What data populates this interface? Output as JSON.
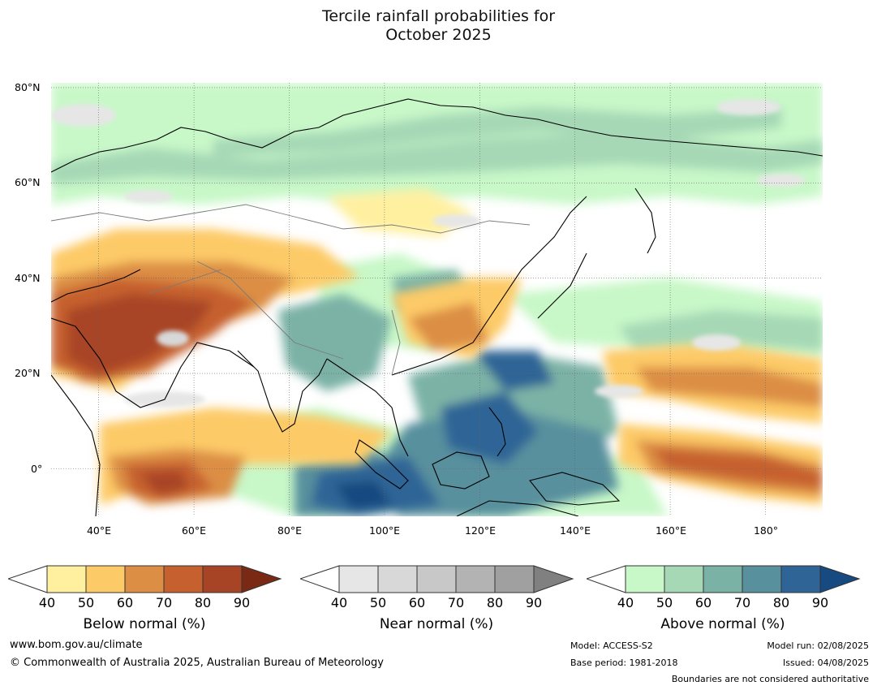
{
  "title_line1": "Tercile rainfall probabilities for",
  "title_line2": "October 2025",
  "map": {
    "lat_labels": [
      "80°N",
      "60°N",
      "40°N",
      "20°N",
      "0°"
    ],
    "lon_labels": [
      "40°E",
      "60°E",
      "80°E",
      "100°E",
      "120°E",
      "140°E",
      "160°E",
      "180°"
    ],
    "lat_range": [
      -10,
      81
    ],
    "lon_range": [
      30,
      192
    ]
  },
  "colorbars": [
    {
      "label": "Below normal (%)",
      "ticks": [
        "40",
        "50",
        "60",
        "70",
        "80",
        "90"
      ],
      "colors": [
        "#fff0a0",
        "#fdca68",
        "#dc8e44",
        "#c6612f",
        "#a84426",
        "#7a2a14"
      ]
    },
    {
      "label": "Near normal (%)",
      "ticks": [
        "40",
        "50",
        "60",
        "70",
        "80",
        "90"
      ],
      "colors": [
        "#e6e6e6",
        "#d8d8d8",
        "#c8c8c8",
        "#b3b3b3",
        "#a0a0a0",
        "#808080"
      ]
    },
    {
      "label": "Above normal (%)",
      "ticks": [
        "40",
        "50",
        "60",
        "70",
        "80",
        "90"
      ],
      "colors": [
        "#c8f8c8",
        "#a6d8b6",
        "#7bb2a6",
        "#58909e",
        "#2f6596",
        "#164a80"
      ]
    }
  ],
  "footer": {
    "website": "www.bom.gov.au/climate",
    "copyright": "© Commonwealth of Australia 2025, Australian Bureau of Meteorology",
    "model": "Model: ACCESS-S2",
    "base_period": "Base period: 1981-2018",
    "model_run": "Model run: 02/08/2025",
    "issued": "Issued: 04/08/2025",
    "disclaimer": "Boundaries are not considered authoritative"
  }
}
